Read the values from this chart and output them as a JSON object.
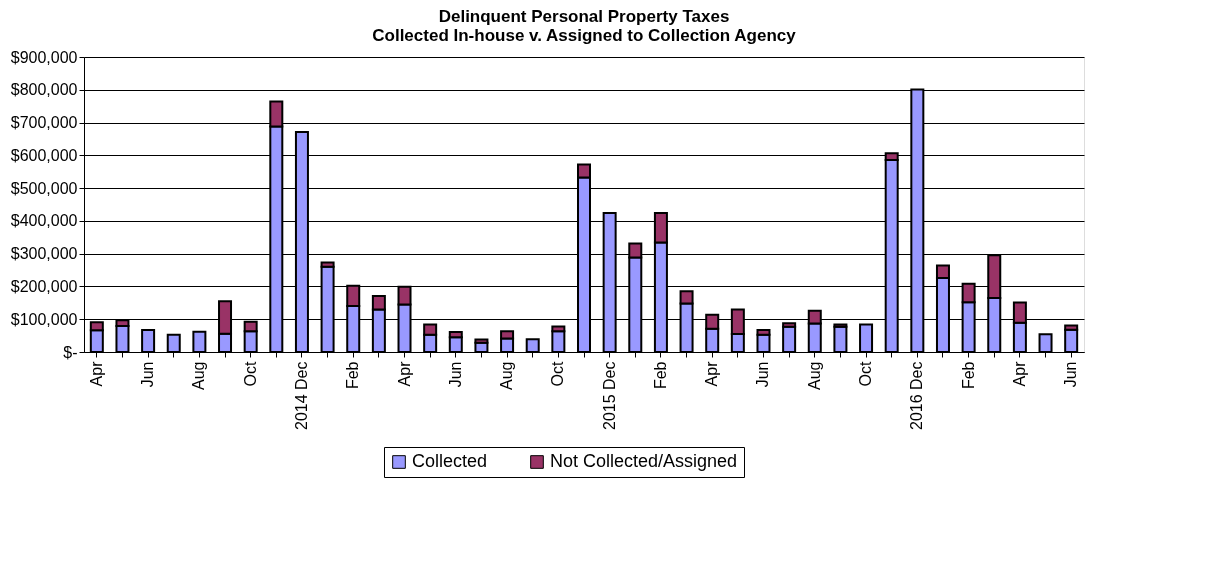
{
  "chart_data": {
    "type": "bar",
    "stacked": true,
    "title": "Delinquent Personal Property Taxes\nCollected In-house v. Assigned to Collection Agency",
    "categories": [
      "Apr",
      null,
      "Jun",
      null,
      "Aug",
      null,
      "Oct",
      null,
      "2014 Dec",
      null,
      "Feb",
      null,
      "Apr",
      null,
      "Jun",
      null,
      "Aug",
      null,
      "Oct",
      null,
      "2015 Dec",
      null,
      "Feb",
      null,
      "Apr",
      null,
      "Jun",
      null,
      "Aug",
      null,
      "Oct",
      null,
      "2016 Dec",
      null,
      "Feb",
      null,
      "Apr",
      null,
      "Jun"
    ],
    "series": [
      {
        "name": "Collected",
        "color": "#9999ff",
        "values": [
          66000,
          79000,
          67000,
          53000,
          62000,
          56000,
          63000,
          688000,
          671000,
          260000,
          140000,
          130000,
          145000,
          53000,
          45000,
          28000,
          41000,
          39000,
          63000,
          532000,
          424000,
          288000,
          334000,
          148000,
          71000,
          55000,
          53000,
          77000,
          87000,
          77000,
          84000,
          586000,
          801000,
          226000,
          152000,
          165000,
          89000,
          54000,
          68000
        ]
      },
      {
        "name": "Not Collected/Assigned",
        "color": "#993366",
        "values": [
          25000,
          18000,
          null,
          null,
          null,
          99000,
          29000,
          76000,
          null,
          13000,
          62000,
          41000,
          54000,
          31000,
          16000,
          10000,
          22000,
          null,
          15000,
          40000,
          null,
          43000,
          90000,
          37000,
          43000,
          75000,
          14000,
          11000,
          39000,
          7000,
          null,
          20000,
          null,
          38000,
          56000,
          130000,
          62000,
          null,
          13000
        ]
      }
    ],
    "ylim": [
      0,
      900000
    ],
    "yticks": [
      {
        "value": 0,
        "label": "$-"
      },
      {
        "value": 100000,
        "label": "$100,000"
      },
      {
        "value": 200000,
        "label": "$200,000"
      },
      {
        "value": 300000,
        "label": "$300,000"
      },
      {
        "value": 400000,
        "label": "$400,000"
      },
      {
        "value": 500000,
        "label": "$500,000"
      },
      {
        "value": 600000,
        "label": "$600,000"
      },
      {
        "value": 700000,
        "label": "$700,000"
      },
      {
        "value": 800000,
        "label": "$800,000"
      },
      {
        "value": 900000,
        "label": "$900,000"
      }
    ],
    "grid": "y",
    "legend": "bottom"
  }
}
